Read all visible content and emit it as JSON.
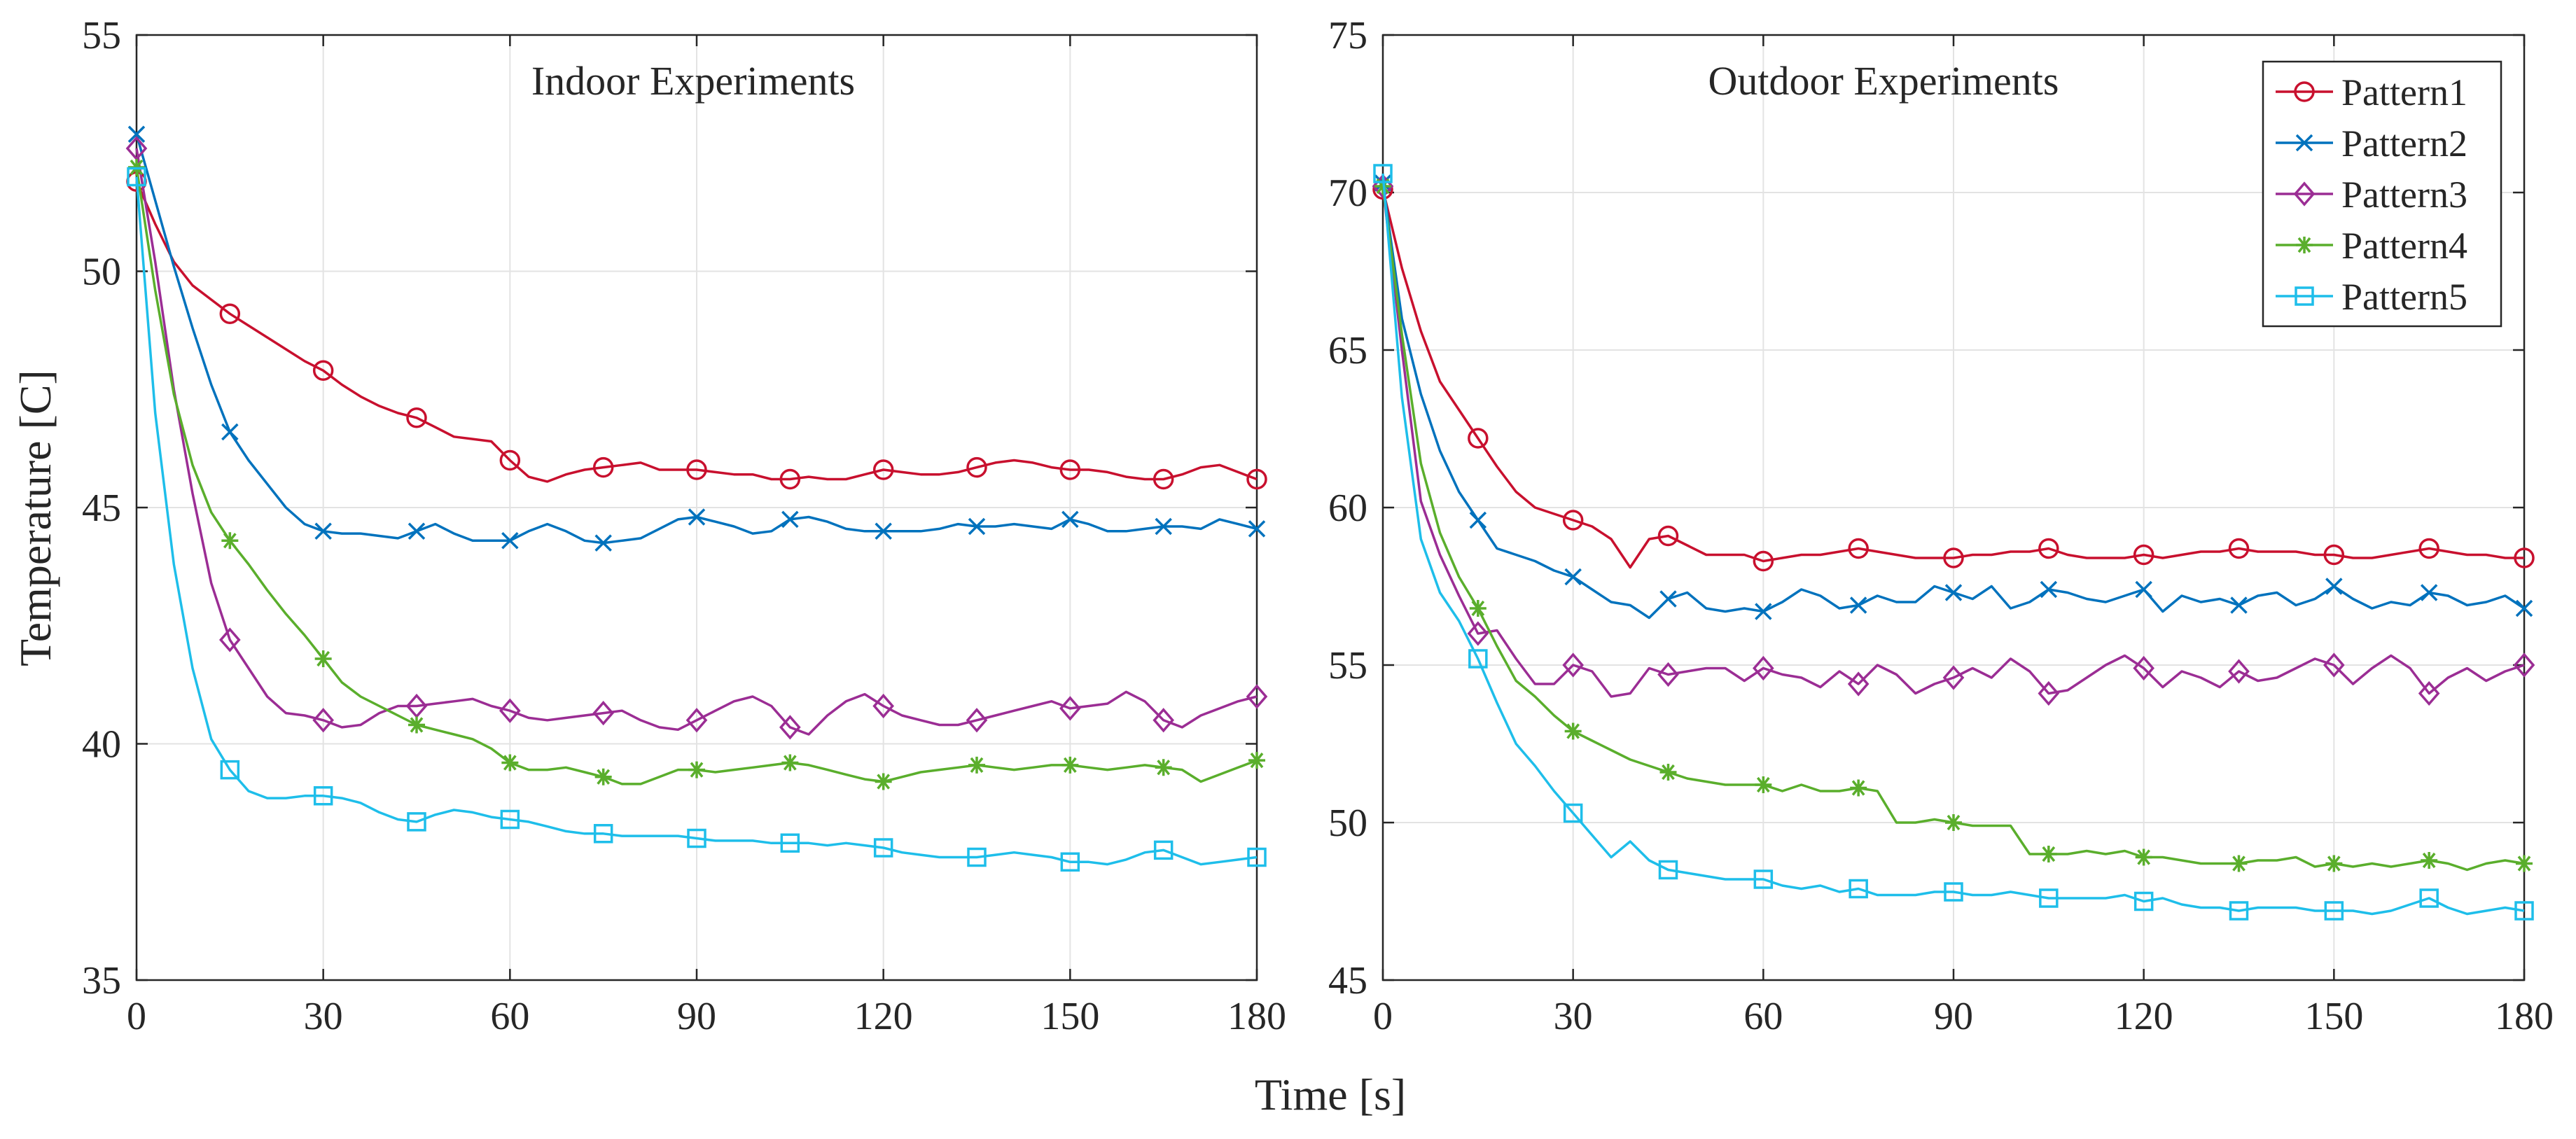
{
  "figure": {
    "xlabel": "Time [s]",
    "ylabel": "Temperature [C]"
  },
  "series_styles": [
    {
      "name": "Pattern1",
      "color": "#C8102E",
      "marker": "circle"
    },
    {
      "name": "Pattern2",
      "color": "#0072BD",
      "marker": "x"
    },
    {
      "name": "Pattern3",
      "color": "#9B2D94",
      "marker": "diamond"
    },
    {
      "name": "Pattern4",
      "color": "#5AAE2C",
      "marker": "asterisk"
    },
    {
      "name": "Pattern5",
      "color": "#1EBEEA",
      "marker": "square"
    }
  ],
  "chart_data": [
    {
      "type": "line",
      "title": "Indoor Experiments",
      "xlabel": "Time [s]",
      "ylabel": "Temperature [C]",
      "xlim": [
        0,
        180
      ],
      "ylim": [
        35,
        55
      ],
      "xticks": [
        0,
        30,
        60,
        90,
        120,
        150,
        180
      ],
      "yticks": [
        35,
        40,
        45,
        50,
        55
      ],
      "grid": true,
      "x": [
        0,
        3,
        6,
        9,
        12,
        15,
        18,
        21,
        24,
        27,
        30,
        33,
        36,
        39,
        42,
        45,
        48,
        51,
        54,
        57,
        60,
        63,
        66,
        69,
        72,
        75,
        78,
        81,
        84,
        87,
        90,
        93,
        96,
        99,
        102,
        105,
        108,
        111,
        114,
        117,
        120,
        123,
        126,
        129,
        132,
        135,
        138,
        141,
        144,
        147,
        150,
        153,
        156,
        159,
        162,
        165,
        168,
        171,
        174,
        177,
        180
      ],
      "marker_every": 5,
      "series": [
        {
          "name": "Pattern1",
          "values": [
            51.9,
            51.0,
            50.2,
            49.7,
            49.4,
            49.1,
            48.85,
            48.6,
            48.35,
            48.1,
            47.9,
            47.6,
            47.35,
            47.15,
            47.0,
            46.9,
            46.7,
            46.5,
            46.45,
            46.4,
            46.0,
            45.65,
            45.55,
            45.7,
            45.8,
            45.85,
            45.9,
            45.95,
            45.8,
            45.8,
            45.8,
            45.75,
            45.7,
            45.7,
            45.6,
            45.6,
            45.65,
            45.6,
            45.6,
            45.7,
            45.8,
            45.75,
            45.7,
            45.7,
            45.75,
            45.85,
            45.95,
            46.0,
            45.95,
            45.85,
            45.8,
            45.8,
            45.75,
            45.65,
            45.6,
            45.6,
            45.7,
            45.85,
            45.9,
            45.75,
            45.6
          ]
        },
        {
          "name": "Pattern2",
          "values": [
            52.9,
            51.5,
            50.1,
            48.8,
            47.6,
            46.6,
            46.0,
            45.5,
            45.0,
            44.65,
            44.5,
            44.45,
            44.45,
            44.4,
            44.35,
            44.5,
            44.65,
            44.45,
            44.3,
            44.3,
            44.3,
            44.5,
            44.65,
            44.5,
            44.3,
            44.25,
            44.3,
            44.35,
            44.55,
            44.75,
            44.8,
            44.7,
            44.6,
            44.45,
            44.5,
            44.75,
            44.8,
            44.7,
            44.55,
            44.5,
            44.5,
            44.5,
            44.5,
            44.55,
            44.65,
            44.6,
            44.6,
            44.65,
            44.6,
            44.55,
            44.75,
            44.65,
            44.5,
            44.5,
            44.55,
            44.6,
            44.6,
            44.55,
            44.75,
            44.65,
            44.55
          ]
        },
        {
          "name": "Pattern3",
          "values": [
            52.6,
            50.2,
            47.5,
            45.3,
            43.4,
            42.2,
            41.6,
            41.0,
            40.65,
            40.6,
            40.5,
            40.35,
            40.4,
            40.65,
            40.8,
            40.8,
            40.85,
            40.9,
            40.95,
            40.8,
            40.7,
            40.55,
            40.5,
            40.55,
            40.6,
            40.65,
            40.7,
            40.5,
            40.35,
            40.3,
            40.5,
            40.7,
            40.9,
            41.0,
            40.8,
            40.35,
            40.2,
            40.6,
            40.9,
            41.05,
            40.8,
            40.6,
            40.5,
            40.4,
            40.4,
            40.5,
            40.6,
            40.7,
            40.8,
            40.9,
            40.75,
            40.8,
            40.85,
            41.1,
            40.9,
            40.5,
            40.35,
            40.6,
            40.75,
            40.9,
            41.0
          ]
        },
        {
          "name": "Pattern4",
          "values": [
            52.2,
            49.6,
            47.4,
            45.9,
            44.9,
            44.3,
            43.8,
            43.25,
            42.75,
            42.3,
            41.8,
            41.3,
            41.0,
            40.8,
            40.6,
            40.4,
            40.3,
            40.2,
            40.1,
            39.9,
            39.6,
            39.45,
            39.45,
            39.5,
            39.4,
            39.3,
            39.15,
            39.15,
            39.3,
            39.45,
            39.45,
            39.4,
            39.45,
            39.5,
            39.55,
            39.6,
            39.55,
            39.45,
            39.35,
            39.25,
            39.2,
            39.3,
            39.4,
            39.45,
            39.5,
            39.55,
            39.5,
            39.45,
            39.5,
            39.55,
            39.55,
            39.5,
            39.45,
            39.5,
            39.55,
            39.5,
            39.45,
            39.2,
            39.35,
            39.5,
            39.65
          ]
        },
        {
          "name": "Pattern5",
          "values": [
            52.0,
            47.0,
            43.8,
            41.6,
            40.1,
            39.45,
            39.0,
            38.85,
            38.85,
            38.9,
            38.9,
            38.85,
            38.75,
            38.55,
            38.4,
            38.35,
            38.5,
            38.6,
            38.55,
            38.45,
            38.4,
            38.35,
            38.25,
            38.15,
            38.1,
            38.1,
            38.05,
            38.05,
            38.05,
            38.05,
            38.0,
            37.95,
            37.95,
            37.95,
            37.9,
            37.9,
            37.9,
            37.85,
            37.9,
            37.85,
            37.8,
            37.7,
            37.65,
            37.6,
            37.6,
            37.6,
            37.65,
            37.7,
            37.65,
            37.6,
            37.5,
            37.5,
            37.45,
            37.55,
            37.7,
            37.75,
            37.6,
            37.45,
            37.5,
            37.55,
            37.6
          ]
        }
      ]
    },
    {
      "type": "line",
      "title": "Outdoor Experiments",
      "xlabel": "Time [s]",
      "ylabel": "Temperature [C]",
      "xlim": [
        0,
        180
      ],
      "ylim": [
        45,
        75
      ],
      "xticks": [
        0,
        30,
        60,
        90,
        120,
        150,
        180
      ],
      "yticks": [
        45,
        50,
        55,
        60,
        65,
        70,
        75
      ],
      "grid": true,
      "legend": "top-right",
      "x": [
        0,
        3,
        6,
        9,
        12,
        15,
        18,
        21,
        24,
        27,
        30,
        33,
        36,
        39,
        42,
        45,
        48,
        51,
        54,
        57,
        60,
        63,
        66,
        69,
        72,
        75,
        78,
        81,
        84,
        87,
        90,
        93,
        96,
        99,
        102,
        105,
        108,
        111,
        114,
        117,
        120,
        123,
        126,
        129,
        132,
        135,
        138,
        141,
        144,
        147,
        150,
        153,
        156,
        159,
        162,
        165,
        168,
        171,
        174,
        177,
        180
      ],
      "marker_every": 5,
      "series": [
        {
          "name": "Pattern1",
          "values": [
            70.1,
            67.6,
            65.6,
            64.0,
            63.1,
            62.2,
            61.3,
            60.5,
            60.0,
            59.8,
            59.6,
            59.4,
            59.0,
            58.1,
            59.0,
            59.1,
            58.8,
            58.5,
            58.5,
            58.5,
            58.3,
            58.4,
            58.5,
            58.5,
            58.6,
            58.7,
            58.6,
            58.5,
            58.4,
            58.4,
            58.4,
            58.5,
            58.5,
            58.6,
            58.6,
            58.7,
            58.5,
            58.4,
            58.4,
            58.4,
            58.5,
            58.4,
            58.5,
            58.6,
            58.6,
            58.7,
            58.6,
            58.6,
            58.6,
            58.5,
            58.5,
            58.4,
            58.4,
            58.5,
            58.6,
            58.7,
            58.6,
            58.5,
            58.5,
            58.4,
            58.4
          ]
        },
        {
          "name": "Pattern2",
          "values": [
            70.3,
            66.0,
            63.6,
            61.8,
            60.5,
            59.6,
            58.7,
            58.5,
            58.3,
            58.0,
            57.8,
            57.4,
            57.0,
            56.9,
            56.5,
            57.1,
            57.3,
            56.8,
            56.7,
            56.8,
            56.7,
            57.0,
            57.4,
            57.2,
            56.8,
            56.9,
            57.2,
            57.0,
            57.0,
            57.5,
            57.3,
            57.1,
            57.5,
            56.8,
            57.0,
            57.4,
            57.3,
            57.1,
            57.0,
            57.2,
            57.4,
            56.7,
            57.2,
            57.0,
            57.1,
            56.9,
            57.2,
            57.3,
            56.9,
            57.1,
            57.5,
            57.1,
            56.8,
            57.0,
            56.9,
            57.3,
            57.2,
            56.9,
            57.0,
            57.2,
            56.8
          ]
        },
        {
          "name": "Pattern3",
          "values": [
            70.2,
            65.0,
            60.2,
            58.5,
            57.2,
            56.0,
            56.1,
            55.2,
            54.4,
            54.4,
            55.0,
            54.8,
            54.0,
            54.1,
            54.9,
            54.7,
            54.8,
            54.9,
            54.9,
            54.5,
            54.9,
            54.7,
            54.6,
            54.3,
            54.8,
            54.4,
            55.0,
            54.7,
            54.1,
            54.4,
            54.6,
            54.9,
            54.6,
            55.2,
            54.8,
            54.1,
            54.2,
            54.6,
            55.0,
            55.3,
            54.9,
            54.3,
            54.8,
            54.6,
            54.3,
            54.8,
            54.5,
            54.6,
            54.9,
            55.2,
            55.0,
            54.4,
            54.9,
            55.3,
            54.9,
            54.1,
            54.6,
            54.9,
            54.5,
            54.8,
            55.0
          ]
        },
        {
          "name": "Pattern4",
          "values": [
            70.2,
            65.5,
            61.4,
            59.2,
            57.8,
            56.8,
            55.6,
            54.5,
            54.0,
            53.4,
            52.9,
            52.6,
            52.3,
            52.0,
            51.8,
            51.6,
            51.4,
            51.3,
            51.2,
            51.2,
            51.2,
            51.0,
            51.2,
            51.0,
            51.0,
            51.1,
            51.0,
            50.0,
            50.0,
            50.1,
            50.0,
            49.9,
            49.9,
            49.9,
            49.0,
            49.0,
            49.0,
            49.1,
            49.0,
            49.1,
            48.9,
            48.9,
            48.8,
            48.7,
            48.7,
            48.7,
            48.8,
            48.8,
            48.9,
            48.6,
            48.7,
            48.6,
            48.7,
            48.6,
            48.7,
            48.8,
            48.7,
            48.5,
            48.7,
            48.8,
            48.7
          ]
        },
        {
          "name": "Pattern5",
          "values": [
            70.6,
            63.5,
            59.0,
            57.3,
            56.4,
            55.2,
            53.8,
            52.5,
            51.8,
            51.0,
            50.3,
            49.6,
            48.9,
            49.4,
            48.8,
            48.5,
            48.4,
            48.3,
            48.2,
            48.2,
            48.2,
            48.0,
            47.9,
            48.0,
            47.8,
            47.9,
            47.7,
            47.7,
            47.7,
            47.8,
            47.8,
            47.7,
            47.7,
            47.8,
            47.7,
            47.6,
            47.6,
            47.6,
            47.6,
            47.7,
            47.5,
            47.6,
            47.4,
            47.3,
            47.3,
            47.2,
            47.3,
            47.3,
            47.3,
            47.2,
            47.2,
            47.2,
            47.1,
            47.2,
            47.4,
            47.6,
            47.3,
            47.1,
            47.2,
            47.3,
            47.2
          ]
        }
      ]
    }
  ]
}
